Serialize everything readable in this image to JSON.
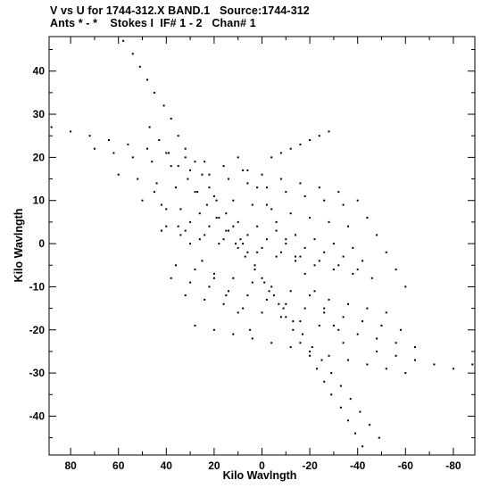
{
  "header": {
    "line1": "V vs U for 1744-312.X BAND.1   Source:1744-312",
    "line2": "Ants * - *    Stokes I  IF# 1 - 2   Chan# 1"
  },
  "chart_data": {
    "type": "scatter",
    "xlabel": "Kilo Wavlngth",
    "ylabel": "Kilo Wavlngth",
    "xlim": [
      89,
      -89
    ],
    "ylim": [
      -49,
      48
    ],
    "x_ticks": [
      80,
      60,
      40,
      20,
      0,
      -20,
      -40,
      -60,
      -80
    ],
    "x_tick_labels": [
      "80",
      "60",
      "40",
      "20",
      "0",
      "-20",
      "-40",
      "-60",
      "-80"
    ],
    "y_ticks": [
      40,
      30,
      20,
      10,
      0,
      -10,
      -20,
      -30,
      -40
    ],
    "y_tick_labels": [
      "40",
      "30",
      "20",
      "10",
      "0",
      "-10",
      "-20",
      "-30",
      "-40"
    ],
    "grid": false,
    "colors": {
      "points": "#000000",
      "axes": "#000000",
      "background": "#ffffff"
    },
    "series": [
      {
        "points": [
          [
            58,
            47
          ],
          [
            54,
            44
          ],
          [
            51,
            41
          ],
          [
            48,
            38
          ],
          [
            45,
            35
          ],
          [
            41,
            32
          ],
          [
            38,
            29
          ],
          [
            35,
            25
          ],
          [
            32,
            22
          ],
          [
            28,
            19
          ],
          [
            25,
            16
          ],
          [
            22,
            13
          ],
          [
            19,
            10
          ],
          [
            15,
            7
          ],
          [
            12,
            4
          ],
          [
            9,
            1
          ],
          [
            6,
            -2
          ],
          [
            3,
            -5
          ],
          [
            0,
            -8
          ],
          [
            -3,
            -11
          ],
          [
            -7,
            -14
          ],
          [
            -10,
            -17
          ],
          [
            -13,
            -20
          ],
          [
            -16,
            -23
          ],
          [
            -20,
            -26
          ],
          [
            -23,
            -29
          ],
          [
            -26,
            -32
          ],
          [
            -29,
            -35
          ],
          [
            -33,
            -38
          ],
          [
            -36,
            -41
          ],
          [
            -39,
            -44
          ],
          [
            -42,
            -47
          ],
          [
            47,
            27
          ],
          [
            43,
            24
          ],
          [
            39,
            21
          ],
          [
            35,
            18
          ],
          [
            31,
            15
          ],
          [
            27,
            12
          ],
          [
            23,
            9
          ],
          [
            19,
            6
          ],
          [
            15,
            3
          ],
          [
            11,
            0
          ],
          [
            7,
            -3
          ],
          [
            3,
            -6
          ],
          [
            -1,
            -9
          ],
          [
            -5,
            -12
          ],
          [
            -9,
            -15
          ],
          [
            -13,
            -18
          ],
          [
            -17,
            -21
          ],
          [
            -21,
            -24
          ],
          [
            -25,
            -27
          ],
          [
            -29,
            -30
          ],
          [
            -33,
            -33
          ],
          [
            -37,
            -36
          ],
          [
            -41,
            -39
          ],
          [
            -45,
            -42
          ],
          [
            -49,
            -45
          ],
          [
            88,
            27
          ],
          [
            80,
            26
          ],
          [
            72,
            25
          ],
          [
            64,
            24
          ],
          [
            56,
            23
          ],
          [
            48,
            22
          ],
          [
            40,
            21
          ],
          [
            32,
            20
          ],
          [
            24,
            19
          ],
          [
            16,
            18
          ],
          [
            8,
            17
          ],
          [
            0,
            16
          ],
          [
            -8,
            15
          ],
          [
            -16,
            14
          ],
          [
            -24,
            13
          ],
          [
            -32,
            12
          ],
          [
            70,
            22
          ],
          [
            62,
            21
          ],
          [
            54,
            20
          ],
          [
            46,
            19
          ],
          [
            38,
            18
          ],
          [
            30,
            17
          ],
          [
            22,
            16
          ],
          [
            14,
            15
          ],
          [
            6,
            14
          ],
          [
            -2,
            13
          ],
          [
            -10,
            12
          ],
          [
            -18,
            11
          ],
          [
            -26,
            10
          ],
          [
            -34,
            9
          ],
          [
            60,
            16
          ],
          [
            52,
            15
          ],
          [
            44,
            14
          ],
          [
            36,
            13
          ],
          [
            28,
            12
          ],
          [
            20,
            11
          ],
          [
            12,
            10
          ],
          [
            4,
            9
          ],
          [
            -4,
            8
          ],
          [
            -12,
            7
          ],
          [
            -20,
            6
          ],
          [
            -28,
            5
          ],
          [
            -36,
            4
          ],
          [
            50,
            10
          ],
          [
            42,
            9
          ],
          [
            34,
            8
          ],
          [
            26,
            7
          ],
          [
            18,
            6
          ],
          [
            10,
            5
          ],
          [
            2,
            4
          ],
          [
            -6,
            3
          ],
          [
            -14,
            2
          ],
          [
            -22,
            1
          ],
          [
            -30,
            0
          ],
          [
            -38,
            -1
          ],
          [
            42,
            3
          ],
          [
            34,
            2
          ],
          [
            26,
            1
          ],
          [
            18,
            0
          ],
          [
            10,
            -1
          ],
          [
            2,
            -2
          ],
          [
            -6,
            -3
          ],
          [
            -14,
            -4
          ],
          [
            -22,
            -5
          ],
          [
            -30,
            -6
          ],
          [
            -38,
            -7
          ],
          [
            -46,
            -8
          ],
          [
            36,
            -5
          ],
          [
            28,
            -6
          ],
          [
            20,
            -7
          ],
          [
            12,
            -8
          ],
          [
            4,
            -9
          ],
          [
            -4,
            -10
          ],
          [
            -12,
            -11
          ],
          [
            -20,
            -12
          ],
          [
            -28,
            -13
          ],
          [
            -36,
            -14
          ],
          [
            -44,
            -15
          ],
          [
            -52,
            -16
          ],
          [
            32,
            -12
          ],
          [
            24,
            -13
          ],
          [
            16,
            -14
          ],
          [
            8,
            -15
          ],
          [
            0,
            -16
          ],
          [
            -8,
            -17
          ],
          [
            -16,
            -18
          ],
          [
            -24,
            -19
          ],
          [
            -32,
            -20
          ],
          [
            -40,
            -21
          ],
          [
            -48,
            -22
          ],
          [
            -56,
            -23
          ],
          [
            -64,
            -24
          ],
          [
            28,
            -19
          ],
          [
            20,
            -20
          ],
          [
            12,
            -21
          ],
          [
            4,
            -22
          ],
          [
            -4,
            -23
          ],
          [
            -12,
            -24
          ],
          [
            -20,
            -25
          ],
          [
            -28,
            -26
          ],
          [
            -36,
            -27
          ],
          [
            -44,
            -28
          ],
          [
            -52,
            -29
          ],
          [
            -60,
            -30
          ],
          [
            -48,
            -25
          ],
          [
            -56,
            -26
          ],
          [
            -64,
            -27
          ],
          [
            -72,
            -28
          ],
          [
            -80,
            -29
          ],
          [
            -88,
            -28
          ],
          [
            40,
            4
          ],
          [
            32,
            3
          ],
          [
            24,
            2
          ],
          [
            16,
            1
          ],
          [
            8,
            0
          ],
          [
            0,
            -1
          ],
          [
            -8,
            -2
          ],
          [
            -16,
            -3
          ],
          [
            -24,
            -4
          ],
          [
            -32,
            -5
          ],
          [
            -40,
            -6
          ],
          [
            30,
            5
          ],
          [
            22,
            4
          ],
          [
            14,
            3
          ],
          [
            6,
            2
          ],
          [
            -2,
            1
          ],
          [
            -10,
            0
          ],
          [
            -18,
            -1
          ],
          [
            -26,
            -2
          ],
          [
            -34,
            -3
          ],
          [
            -42,
            -4
          ],
          [
            -4,
            20
          ],
          [
            -8,
            21
          ],
          [
            -12,
            22
          ],
          [
            -16,
            23
          ],
          [
            -20,
            24
          ],
          [
            -24,
            25
          ],
          [
            -28,
            26
          ],
          [
            38,
            -8
          ],
          [
            30,
            -9
          ],
          [
            22,
            -10
          ],
          [
            14,
            -11
          ],
          [
            6,
            -12
          ],
          [
            -2,
            -13
          ],
          [
            -10,
            -14
          ],
          [
            -18,
            -15
          ],
          [
            -26,
            -16
          ],
          [
            -34,
            -17
          ],
          [
            -42,
            -18
          ],
          [
            -50,
            -19
          ],
          [
            -58,
            -20
          ],
          [
            10,
            20
          ],
          [
            6,
            17
          ],
          [
            2,
            13
          ],
          [
            -2,
            9
          ],
          [
            -6,
            5
          ],
          [
            -10,
            1
          ],
          [
            -14,
            -3
          ],
          [
            -18,
            -7
          ],
          [
            -22,
            -11
          ],
          [
            -26,
            -15
          ],
          [
            -30,
            -19
          ],
          [
            -34,
            -23
          ],
          [
            45,
            12
          ],
          [
            40,
            8
          ],
          [
            35,
            4
          ],
          [
            30,
            0
          ],
          [
            25,
            -4
          ],
          [
            20,
            -8
          ],
          [
            15,
            -12
          ],
          [
            10,
            -16
          ],
          [
            5,
            -20
          ],
          [
            -40,
            10
          ],
          [
            -44,
            6
          ],
          [
            -48,
            2
          ],
          [
            -52,
            -2
          ],
          [
            -56,
            -6
          ],
          [
            -60,
            -10
          ]
        ]
      }
    ]
  }
}
